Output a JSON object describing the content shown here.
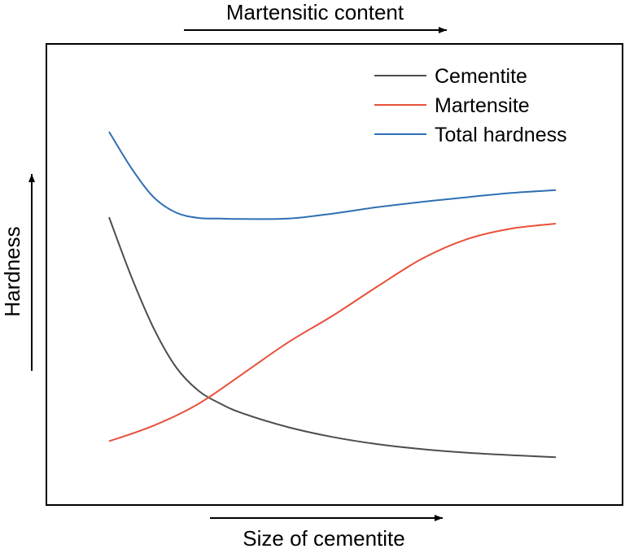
{
  "colors": {
    "cementite": "#4d4d4d",
    "martensite": "#e8503a",
    "total": "#2f6fb3",
    "frame": "#000000"
  },
  "chart_data": {
    "type": "line",
    "top_label": "Martensitic content",
    "xlabel": "Size of cementite",
    "ylabel": "Hardness",
    "xlim": [
      0,
      100
    ],
    "ylim": [
      0,
      100
    ],
    "grid": false,
    "ticks": false,
    "legend_position": "top-right",
    "legend": [
      "Cementite",
      "Martensite",
      "Total hardness"
    ],
    "series": [
      {
        "name": "Cementite",
        "color": "#4d4d4d",
        "x": [
          0,
          5,
          10,
          15,
          20,
          25,
          30,
          40,
          50,
          60,
          70,
          80,
          90,
          100
        ],
        "y": [
          68.7,
          52,
          37.5,
          26.6,
          20,
          16.3,
          13.6,
          9.8,
          7,
          5,
          3.6,
          2.6,
          1.9,
          1.3
        ]
      },
      {
        "name": "Martensite",
        "color": "#e8503a",
        "x": [
          0,
          10,
          20,
          30,
          40,
          50,
          60,
          70,
          80,
          90,
          100
        ],
        "y": [
          5.8,
          10.2,
          16.3,
          24.8,
          33.5,
          41,
          49.2,
          57,
          62.5,
          65.5,
          66.9
        ]
      },
      {
        "name": "Total hardness",
        "color": "#2f6fb3",
        "x": [
          0,
          5,
          10,
          15,
          20,
          25,
          30,
          40,
          50,
          60,
          70,
          80,
          90,
          100
        ],
        "y": [
          92.7,
          82.5,
          74.3,
          70,
          68.5,
          68.3,
          68.2,
          68.3,
          69.7,
          71.5,
          73,
          74.3,
          75.5,
          76.3
        ]
      }
    ]
  }
}
